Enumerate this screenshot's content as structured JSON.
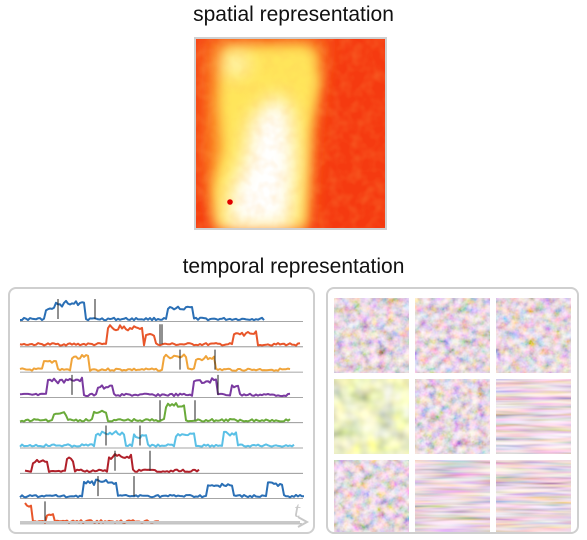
{
  "spatial_title": "spatial representation",
  "temporal_title": "temporal representation",
  "time_axis_label": "t",
  "colors": {
    "heatmap_red": "#f53a10",
    "heatmap_orange": "#fb8a20",
    "heatmap_yellow": "#ffe55a",
    "heatmap_white": "#ffffff",
    "marker": "#e00000",
    "panel_border": "#cfcfcf",
    "baseline": "#888888",
    "event_marker": "#222222",
    "series": [
      "#2a6fb5",
      "#e8562a",
      "#f0a43a",
      "#7a3aa0",
      "#6aaa3a",
      "#5ac0e6",
      "#b0202a",
      "#2a6fb5",
      "#e8562a"
    ]
  },
  "tiles": {
    "count": 9,
    "descriptions": [
      "blurred-texture",
      "blurred-texture",
      "blurred-texture",
      "yellow-bokeh",
      "blurred-texture",
      "motion-blur",
      "blurred-texture",
      "motion-blur",
      "motion-blur"
    ]
  }
}
